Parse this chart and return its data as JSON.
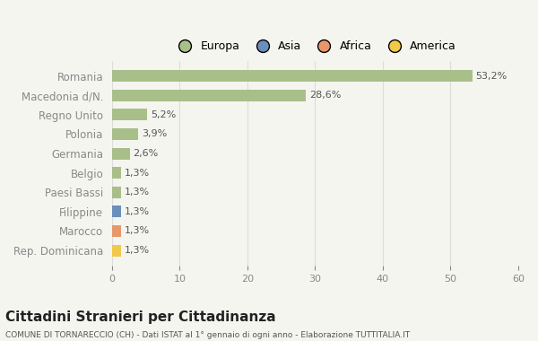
{
  "categories": [
    "Romania",
    "Macedonia d/N.",
    "Regno Unito",
    "Polonia",
    "Germania",
    "Belgio",
    "Paesi Bassi",
    "Filippine",
    "Marocco",
    "Rep. Dominicana"
  ],
  "values": [
    53.2,
    28.6,
    5.2,
    3.9,
    2.6,
    1.3,
    1.3,
    1.3,
    1.3,
    1.3
  ],
  "labels": [
    "53,2%",
    "28,6%",
    "5,2%",
    "3,9%",
    "2,6%",
    "1,3%",
    "1,3%",
    "1,3%",
    "1,3%",
    "1,3%"
  ],
  "colors": [
    "#a8bf8a",
    "#a8bf8a",
    "#a8bf8a",
    "#a8bf8a",
    "#a8bf8a",
    "#a8bf8a",
    "#a8bf8a",
    "#6a8fbc",
    "#e8976a",
    "#f0c84a"
  ],
  "legend_labels": [
    "Europa",
    "Asia",
    "Africa",
    "America"
  ],
  "legend_colors": [
    "#a8bf8a",
    "#6a8fbc",
    "#e8976a",
    "#f0c84a"
  ],
  "xlim": [
    0,
    60
  ],
  "xticks": [
    0,
    10,
    20,
    30,
    40,
    50,
    60
  ],
  "title": "Cittadini Stranieri per Cittadinanza",
  "subtitle": "COMUNE DI TORNARECCIO (CH) - Dati ISTAT al 1° gennaio di ogni anno - Elaborazione TUTTITALIA.IT",
  "background_color": "#f5f5f0",
  "grid_color": "#dddddd"
}
